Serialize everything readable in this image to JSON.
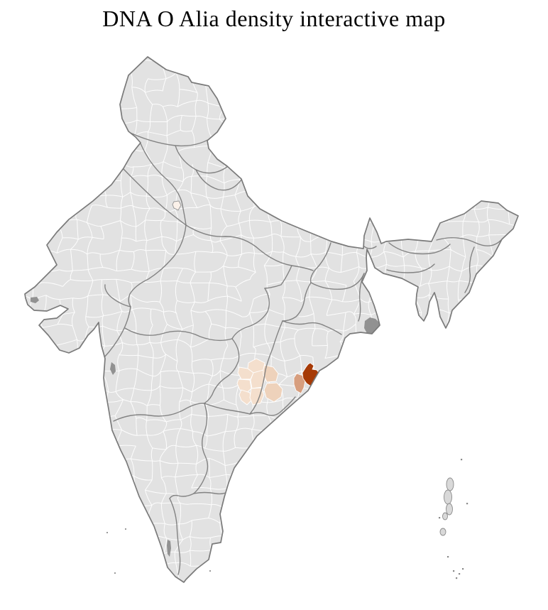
{
  "title": "DNA O Alia density interactive map",
  "map": {
    "name": "India district choropleth",
    "background_color": "#ffffff",
    "base_fill": "#e2e2e2",
    "district_border_color": "#ffffff",
    "state_border_color": "#7d7d7d",
    "coast_border_color": "#7a7a7a",
    "island_fill": "#d9d9d9",
    "dark_feature_fill": "#8c8c8c"
  },
  "chart_data": {
    "type": "choropleth",
    "title": "DNA O Alia density interactive map",
    "geography": "India, district-level outline map",
    "legend_position": "none",
    "no_data_color": "#e2e2e2",
    "classes": [
      {
        "level": "highest",
        "color": "#a63a06",
        "district_count": 1,
        "approx_location": "east coast, Odisha region"
      },
      {
        "level": "medium",
        "color": "#d79e7e",
        "district_count": 1,
        "approx_location": "east coast, immediately west of highest district"
      },
      {
        "level": "low",
        "color": "#f4dfcd",
        "color_alt": "#eed2bb",
        "district_count": 8,
        "approx_location": "inland cluster, western Odisha / Chhattisgarh border"
      },
      {
        "level": "trace",
        "color": "#fbf1e9",
        "district_count": 1,
        "approx_location": "north, Delhi area"
      }
    ]
  }
}
